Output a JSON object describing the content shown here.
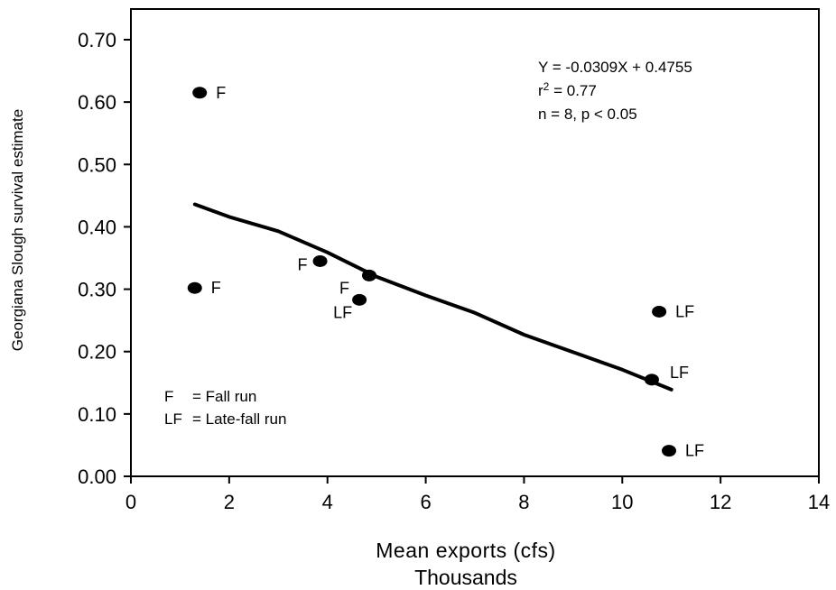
{
  "chart_data": {
    "type": "scatter",
    "xlabel": "Mean exports (cfs)",
    "xlabel_units": "Thousands",
    "ylabel": "Georgiana Slough survival estimate",
    "xlim": [
      0,
      14
    ],
    "ylim": [
      0,
      0.7
    ],
    "x_ticks": [
      "0",
      "2",
      "4",
      "6",
      "8",
      "10",
      "12",
      "14"
    ],
    "y_ticks": [
      "0.00",
      "0.10",
      "0.20",
      "0.30",
      "0.40",
      "0.50",
      "0.60",
      "0.70"
    ],
    "grid": false,
    "points": [
      {
        "x": 1.4,
        "y": 0.615,
        "label": "F"
      },
      {
        "x": 1.3,
        "y": 0.302,
        "label": "F"
      },
      {
        "x": 3.85,
        "y": 0.345,
        "label": "F"
      },
      {
        "x": 4.85,
        "y": 0.322,
        "label": "F"
      },
      {
        "x": 4.65,
        "y": 0.283,
        "label": "LF"
      },
      {
        "x": 10.75,
        "y": 0.264,
        "label": "LF"
      },
      {
        "x": 10.6,
        "y": 0.155,
        "label": "LF"
      },
      {
        "x": 10.95,
        "y": 0.041,
        "label": "LF"
      }
    ],
    "fit_line": [
      {
        "x": 1.3,
        "y": 0.436
      },
      {
        "x": 2.0,
        "y": 0.416
      },
      {
        "x": 3.0,
        "y": 0.393
      },
      {
        "x": 4.0,
        "y": 0.359
      },
      {
        "x": 5.0,
        "y": 0.32
      },
      {
        "x": 6.0,
        "y": 0.29
      },
      {
        "x": 7.0,
        "y": 0.262
      },
      {
        "x": 8.0,
        "y": 0.227
      },
      {
        "x": 9.0,
        "y": 0.199
      },
      {
        "x": 10.0,
        "y": 0.171
      },
      {
        "x": 11.0,
        "y": 0.139
      }
    ],
    "annotations": {
      "equation": "Y = -0.0309X + 0.4755",
      "r2_prefix": "r",
      "r2_sup": "2",
      "r2_suffix": " = 0.77",
      "stats": "n = 8, p < 0.05"
    },
    "legend": [
      {
        "code": "F",
        "text": "= Fall run"
      },
      {
        "code": "LF",
        "text": "= Late-fall run"
      }
    ]
  }
}
